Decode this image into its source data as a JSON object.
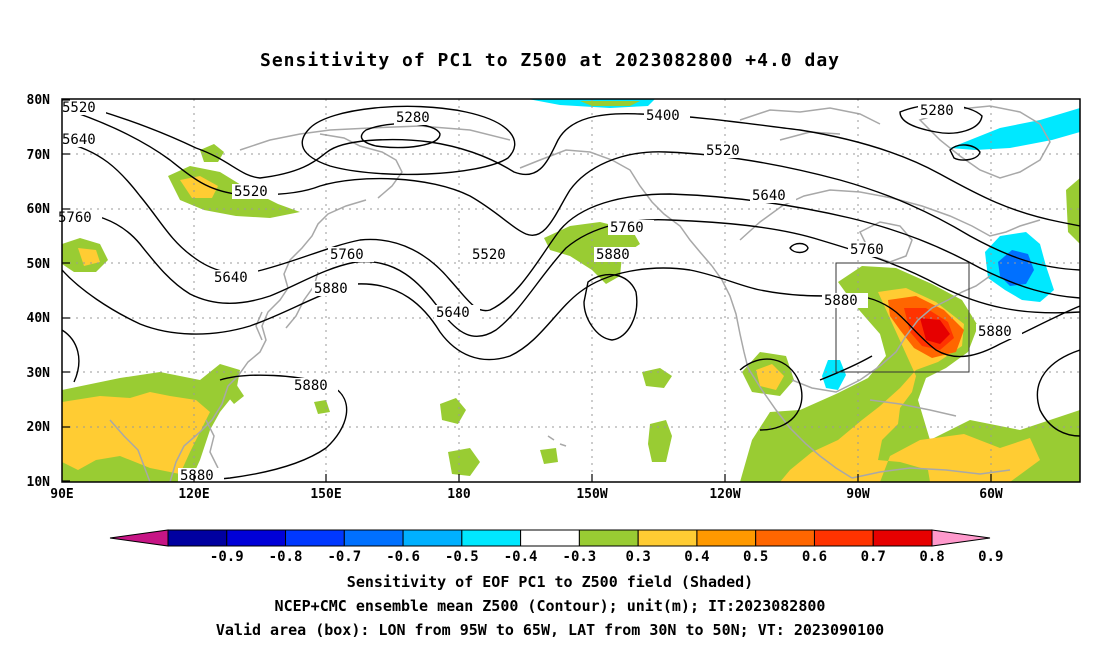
{
  "title": "Sensitivity of PC1 to Z500 at 2023082800 +4.0 day",
  "lat_labels": [
    "80N",
    "70N",
    "60N",
    "50N",
    "40N",
    "30N",
    "20N",
    "10N"
  ],
  "lon_labels": [
    "90E",
    "120E",
    "150E",
    "180",
    "150W",
    "120W",
    "90W",
    "60W"
  ],
  "contour_labels": [
    "5520",
    "5640",
    "5760",
    "5280",
    "5520",
    "5400",
    "5520",
    "5280",
    "5640",
    "5760",
    "5880",
    "5520",
    "5640",
    "5760",
    "5880",
    "5640",
    "5880",
    "5880",
    "5880",
    "5880"
  ],
  "colorbar": {
    "ticks": [
      "-0.9",
      "-0.8",
      "-0.7",
      "-0.6",
      "-0.5",
      "-0.4",
      "-0.3",
      "0.3",
      "0.4",
      "0.5",
      "0.6",
      "0.7",
      "0.8",
      "0.9"
    ],
    "colors": [
      "#c71585",
      "#0000a0",
      "#0000d8",
      "#0038ff",
      "#0070ff",
      "#00b0ff",
      "#00e8ff",
      "#ffffff",
      "#99cc33",
      "#ffcc33",
      "#ff9900",
      "#ff6600",
      "#ff3300",
      "#e60000",
      "#ff99cc"
    ]
  },
  "footer": {
    "line1": "Sensitivity of EOF PC1 to Z500 field (Shaded)",
    "line2": "NCEP+CMC ensemble mean Z500 (Contour); unit(m); IT:2023082800",
    "line3": "Valid area (box): LON from 95W to 65W, LAT from 30N to 50N; VT: 2023090100"
  }
}
